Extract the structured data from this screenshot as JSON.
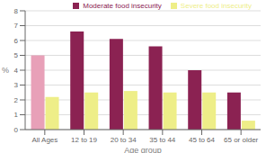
{
  "chart_data": {
    "type": "bar",
    "categories": [
      "All Ages",
      "12 to 19",
      "20 to 34",
      "35 to 44",
      "45 to 64",
      "65 or older"
    ],
    "series": [
      {
        "name": "Moderate food insecurity",
        "color": "#8b2252",
        "colors": [
          "#e8a0b8",
          "#8b2252",
          "#8b2252",
          "#8b2252",
          "#8b2252",
          "#8b2252"
        ],
        "values": [
          5.0,
          6.6,
          6.1,
          5.6,
          4.0,
          2.5
        ]
      },
      {
        "name": "Severe food insecurity",
        "color": "#eeee88",
        "values": [
          2.2,
          2.5,
          2.6,
          2.5,
          2.5,
          0.6
        ]
      }
    ],
    "xlabel": "Age group",
    "ylabel": "%",
    "ylim": [
      0,
      8
    ],
    "yticks": [
      0,
      1,
      2,
      3,
      4,
      5,
      6,
      7,
      8
    ],
    "grid": true,
    "legend": "upper right"
  }
}
